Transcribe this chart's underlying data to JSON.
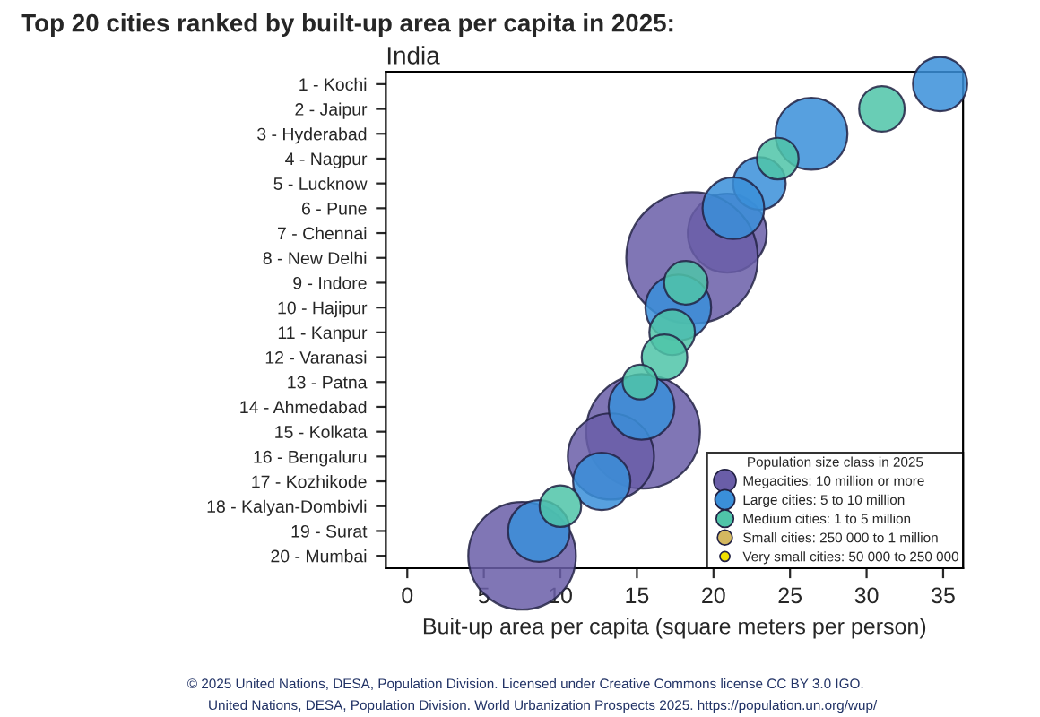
{
  "chart_data": {
    "type": "bubble",
    "title": "Top 20 cities ranked by built-up area per capita in 2025:",
    "subtitle": "India",
    "xlabel": "Buit-up area per capita (square meters per person)",
    "categories": [
      "1 - Kochi",
      "2 - Jaipur",
      "3 - Hyderabad",
      "4 - Nagpur",
      "5 - Lucknow",
      "6 - Pune",
      "7 - Chennai",
      "8 - New Delhi",
      "9 - Indore",
      "10 - Hajipur",
      "11 - Kanpur",
      "12 - Varanasi",
      "13 - Patna",
      "14 - Ahmedabad",
      "15 - Kolkata",
      "16 - Bengaluru",
      "17 - Kozhikode",
      "18 - Kalyan-Dombivli",
      "19 - Surat",
      "20 - Mumbai"
    ],
    "orientation": "horizontal",
    "xlim": [
      -1.4,
      36.3
    ],
    "xticks": [
      0,
      5,
      10,
      15,
      20,
      25,
      30,
      35
    ],
    "grid": false,
    "legend": "bottom right",
    "legend_title": "Population size class in 2025",
    "series": [
      {
        "name": "Megacities: 10 million or more",
        "color": "#6a5ea8",
        "values": [
          null,
          null,
          null,
          null,
          null,
          null,
          20.9,
          18.6,
          null,
          null,
          null,
          null,
          null,
          null,
          15.4,
          13.3,
          null,
          null,
          null,
          7.5
        ],
        "sizes": [
          null,
          null,
          null,
          null,
          null,
          null,
          0.36,
          1,
          null,
          null,
          null,
          null,
          null,
          null,
          0.75,
          0.43,
          null,
          null,
          null,
          0.67
        ]
      },
      {
        "name": "Large cities: 5 to 10 million",
        "color": "#3a8fd9",
        "values": [
          34.8,
          null,
          26.4,
          null,
          23.0,
          21.3,
          null,
          null,
          null,
          17.7,
          null,
          null,
          null,
          15.3,
          null,
          null,
          12.7,
          null,
          8.6,
          null
        ],
        "sizes": [
          0.17,
          null,
          0.3,
          null,
          0.16,
          0.22,
          null,
          null,
          null,
          0.25,
          null,
          null,
          null,
          0.25,
          null,
          null,
          0.19,
          null,
          0.22,
          null
        ]
      },
      {
        "name": "Medium cities: 1 to 5 million",
        "color": "#4fc4a8",
        "values": [
          null,
          31.0,
          null,
          24.2,
          null,
          null,
          null,
          null,
          18.2,
          null,
          17.3,
          16.8,
          15.2,
          null,
          null,
          null,
          null,
          10.0,
          null,
          null
        ],
        "sizes": [
          null,
          0.12,
          null,
          0.1,
          null,
          null,
          null,
          null,
          0.11,
          null,
          0.12,
          0.12,
          0.07,
          null,
          null,
          null,
          null,
          0.1,
          null,
          null
        ]
      },
      {
        "name": "Small cities: 250 000 to 1 million",
        "color": "#d4b860",
        "values": [
          null,
          null,
          null,
          null,
          null,
          null,
          null,
          null,
          null,
          null,
          null,
          null,
          null,
          null,
          null,
          null,
          null,
          null,
          null,
          null
        ],
        "sizes": [
          null,
          null,
          null,
          null,
          null,
          null,
          null,
          null,
          null,
          null,
          null,
          null,
          null,
          null,
          null,
          null,
          null,
          null,
          null,
          null
        ]
      },
      {
        "name": "Very small cities: 50 000 to 250 000",
        "color": "#f0e000",
        "values": [
          null,
          null,
          null,
          null,
          null,
          null,
          null,
          null,
          null,
          null,
          null,
          null,
          null,
          null,
          null,
          null,
          null,
          null,
          null,
          null
        ],
        "sizes": [
          null,
          null,
          null,
          null,
          null,
          null,
          null,
          null,
          null,
          null,
          null,
          null,
          null,
          null,
          null,
          null,
          null,
          null,
          null,
          null
        ]
      }
    ],
    "annotations": [
      "© 2025 United Nations, DESA, Population Division. Licensed under Creative Commons license CC BY 3.0 IGO.",
      "United Nations, DESA, Population Division. World Urbanization Prospects 2025. https://population.un.org/wup/"
    ]
  }
}
